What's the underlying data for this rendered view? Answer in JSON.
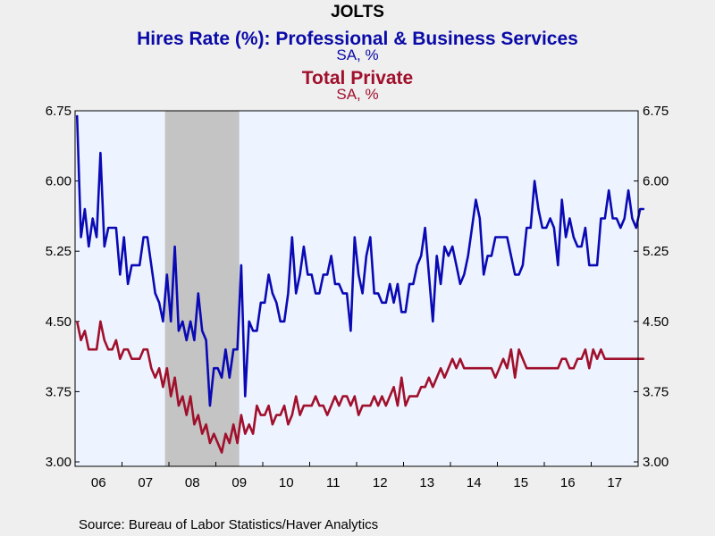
{
  "header": {
    "title": "JOLTS",
    "series1_label": "Hires Rate (%): Professional & Business Services",
    "series1_units": "SA, %",
    "series2_label": "Total Private",
    "series2_units": "SA, %"
  },
  "source": "Source:  Bureau of Labor Statistics/Haver Analytics",
  "colors": {
    "series1": "#0a0ab4",
    "series2": "#a0102c",
    "recession": "#c4c4c4",
    "plot_bg": "#eef4ff"
  },
  "chart_data": {
    "type": "line",
    "title": "JOLTS",
    "xlabel": "",
    "ylabel": "",
    "ylim": [
      3.0,
      6.75
    ],
    "yticks": [
      "3.00",
      "3.75",
      "4.50",
      "5.25",
      "6.00",
      "6.75"
    ],
    "x_start": "2006-01",
    "x_end": "2017-12",
    "x_tick_labels": [
      "06",
      "07",
      "08",
      "09",
      "10",
      "11",
      "12",
      "13",
      "14",
      "15",
      "16",
      "17"
    ],
    "recession": {
      "start": "2007-12",
      "end": "2009-06"
    },
    "grid": false,
    "series": [
      {
        "name": "Hires Rate (%): Professional & Business Services",
        "frequency": "monthly",
        "values": [
          6.7,
          5.4,
          5.7,
          5.3,
          5.6,
          5.4,
          6.3,
          5.3,
          5.5,
          5.5,
          5.5,
          5.0,
          5.4,
          4.9,
          5.1,
          5.1,
          5.1,
          5.4,
          5.4,
          5.1,
          4.8,
          4.7,
          4.5,
          5.0,
          4.5,
          5.3,
          4.4,
          4.5,
          4.3,
          4.5,
          4.3,
          4.8,
          4.4,
          4.3,
          3.6,
          4.0,
          4.0,
          3.9,
          4.2,
          3.9,
          4.2,
          4.2,
          5.1,
          3.7,
          4.5,
          4.4,
          4.4,
          4.7,
          4.7,
          5.0,
          4.8,
          4.7,
          4.5,
          4.5,
          4.8,
          5.4,
          4.8,
          5.0,
          5.3,
          5.0,
          5.0,
          4.8,
          4.8,
          5.0,
          5.0,
          5.2,
          4.9,
          4.9,
          4.8,
          4.8,
          4.4,
          5.4,
          5.0,
          4.8,
          5.2,
          5.4,
          4.8,
          4.8,
          4.7,
          4.7,
          4.9,
          4.7,
          4.9,
          4.6,
          4.6,
          4.9,
          4.9,
          5.1,
          5.2,
          5.5,
          5.0,
          4.5,
          5.2,
          4.9,
          5.3,
          5.2,
          5.3,
          5.1,
          4.9,
          5.0,
          5.2,
          5.5,
          5.8,
          5.6,
          5.0,
          5.2,
          5.2,
          5.4,
          5.4,
          5.4,
          5.4,
          5.2,
          5.0,
          5.0,
          5.1,
          5.5,
          5.5,
          6.0,
          5.7,
          5.5,
          5.5,
          5.6,
          5.5,
          5.1,
          5.8,
          5.4,
          5.6,
          5.4,
          5.3,
          5.3,
          5.5,
          5.1,
          5.1,
          5.1,
          5.6,
          5.6,
          5.9,
          5.6,
          5.6,
          5.5,
          5.6,
          5.9,
          5.6,
          5.5,
          5.7,
          5.7
        ]
      },
      {
        "name": "Total Private",
        "frequency": "monthly",
        "values": [
          4.5,
          4.3,
          4.4,
          4.2,
          4.2,
          4.2,
          4.5,
          4.3,
          4.2,
          4.2,
          4.3,
          4.1,
          4.2,
          4.2,
          4.1,
          4.1,
          4.1,
          4.2,
          4.2,
          4.0,
          3.9,
          4.0,
          3.8,
          4.0,
          3.7,
          3.9,
          3.6,
          3.7,
          3.5,
          3.7,
          3.4,
          3.5,
          3.3,
          3.4,
          3.2,
          3.3,
          3.2,
          3.1,
          3.3,
          3.2,
          3.4,
          3.2,
          3.5,
          3.3,
          3.4,
          3.3,
          3.6,
          3.5,
          3.5,
          3.6,
          3.4,
          3.5,
          3.5,
          3.6,
          3.4,
          3.5,
          3.7,
          3.5,
          3.6,
          3.6,
          3.6,
          3.7,
          3.6,
          3.6,
          3.5,
          3.6,
          3.7,
          3.6,
          3.7,
          3.7,
          3.6,
          3.7,
          3.5,
          3.6,
          3.6,
          3.6,
          3.7,
          3.6,
          3.7,
          3.6,
          3.7,
          3.8,
          3.6,
          3.9,
          3.6,
          3.7,
          3.7,
          3.7,
          3.8,
          3.8,
          3.9,
          3.8,
          3.9,
          4.0,
          3.9,
          4.0,
          4.1,
          4.0,
          4.1,
          4.0,
          4.0,
          4.0,
          4.0,
          4.0,
          4.0,
          4.0,
          4.0,
          3.9,
          4.0,
          4.1,
          4.0,
          4.2,
          3.9,
          4.2,
          4.1,
          4.0,
          4.0,
          4.0,
          4.0,
          4.0,
          4.0,
          4.0,
          4.0,
          4.0,
          4.1,
          4.1,
          4.0,
          4.0,
          4.1,
          4.1,
          4.2,
          4.0,
          4.2,
          4.1,
          4.2,
          4.1,
          4.1,
          4.1,
          4.1,
          4.1,
          4.1,
          4.1,
          4.1,
          4.1,
          4.1,
          4.1
        ]
      }
    ]
  }
}
